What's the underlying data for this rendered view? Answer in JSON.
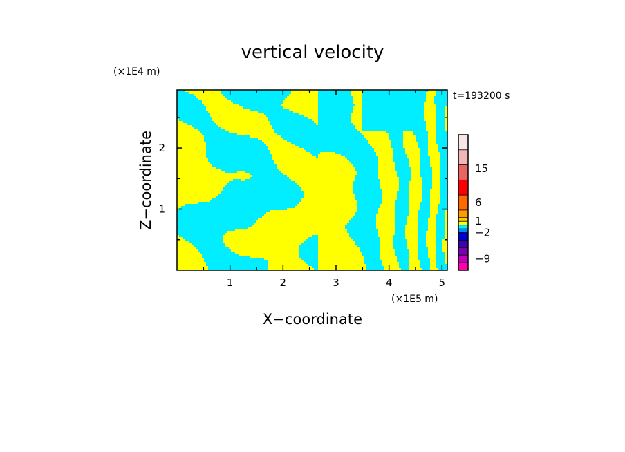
{
  "chart_data": {
    "type": "heatmap",
    "title": "vertical velocity",
    "xlabel": "X−coordinate",
    "ylabel": "Z−coordinate",
    "x_unit": "(×1E5 m)",
    "y_unit": "(×1E4 m)",
    "time_label": "t=193200 s",
    "xlim": [
      0,
      5.1
    ],
    "ylim": [
      0,
      2.95
    ],
    "x_ticks": [
      1,
      2,
      3,
      4,
      5
    ],
    "y_ticks": [
      1,
      2
    ],
    "colorbar": {
      "tick_labels": [
        "15",
        "6",
        "1",
        "−2",
        "−9"
      ],
      "tick_values": [
        15,
        6,
        1,
        -2,
        -9
      ],
      "range": [
        -12,
        24
      ]
    },
    "colors": {
      "dominant_positive": "#ffff00",
      "dominant_negative": "#00eeff"
    }
  }
}
